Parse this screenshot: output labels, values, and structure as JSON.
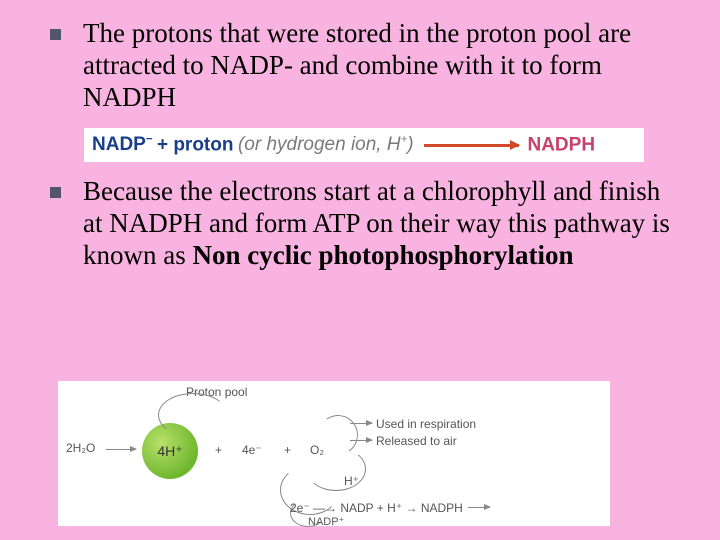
{
  "colors": {
    "slide_bg": "#f9b3e0",
    "bullet": "#54546e",
    "eqn_reagent": "#1a3f8a",
    "eqn_paren": "#7a7a7a",
    "eqn_arrow": "#d34a2a",
    "eqn_product": "#c7416b",
    "diagram_bg": "#ffffff",
    "diagram_text": "#555555",
    "h_circle_fill": "#6fb82e"
  },
  "typography": {
    "body_family": "Times New Roman",
    "body_size_pt": 20,
    "eqn_family": "Arial",
    "eqn_size_pt": 14,
    "diagram_family": "Arial",
    "diagram_size_pt": 9
  },
  "bullets": [
    {
      "text": "The protons that were stored in the proton pool are attracted to NADP- and combine with it to form NADPH"
    },
    {
      "text_prefix": "Because the electrons start at a chlorophyll and finish at NADPH and form ATP on their way this pathway is known as ",
      "text_bold": "Non cyclic photophosphorylation"
    }
  ],
  "equation": {
    "lhs_a": "NADP",
    "lhs_a_sup": "−",
    "plus": " + ",
    "lhs_b": "proton",
    "paren": " (or hydrogen ion, H",
    "paren_sup": "+",
    "paren_close": ")",
    "product": "NADPH"
  },
  "diagram": {
    "type": "flowchart",
    "water": "2H₂O",
    "h_label": "4H⁺",
    "plus": "+",
    "electrons4": "4e⁻",
    "o2": "O₂",
    "proton_pool": "Proton pool",
    "used": "Used in respiration",
    "released": "Released to air",
    "hplus": "H⁺",
    "bottom_line": "2e⁻ —→ NADP + H⁺ → NADPH",
    "nadp_plus": "NADP⁺"
  }
}
